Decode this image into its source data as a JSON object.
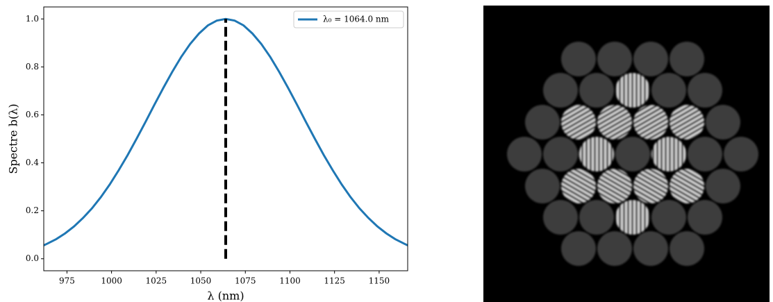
{
  "chart_data": {
    "type": "line",
    "xlabel": "λ (nm)",
    "ylabel": "Spectre b(λ)",
    "x": [
      962,
      964,
      969,
      974,
      979,
      984,
      989,
      994,
      999,
      1004,
      1009,
      1014,
      1019,
      1024,
      1029,
      1034,
      1039,
      1044,
      1049,
      1054,
      1059,
      1064,
      1069,
      1074,
      1079,
      1084,
      1089,
      1094,
      1099,
      1104,
      1109,
      1114,
      1119,
      1124,
      1129,
      1134,
      1139,
      1144,
      1149,
      1154,
      1159,
      1164,
      1166
    ],
    "series": [
      {
        "name": "λ₀ = 1064.0 nm",
        "color": "#1f77b4",
        "values": [
          0.056,
          0.063,
          0.082,
          0.106,
          0.135,
          0.17,
          0.21,
          0.257,
          0.31,
          0.369,
          0.432,
          0.5,
          0.57,
          0.642,
          0.712,
          0.779,
          0.841,
          0.895,
          0.939,
          0.973,
          0.993,
          1.0,
          0.993,
          0.973,
          0.939,
          0.895,
          0.841,
          0.779,
          0.712,
          0.642,
          0.57,
          0.5,
          0.432,
          0.369,
          0.31,
          0.257,
          0.21,
          0.17,
          0.135,
          0.106,
          0.082,
          0.063,
          0.056
        ]
      }
    ],
    "vline": {
      "x": 1064,
      "y": [
        0,
        1
      ],
      "color": "#000000"
    },
    "xlim": [
      962,
      1166
    ],
    "ylim": [
      -0.05,
      1.05
    ],
    "xticks": [
      975,
      1000,
      1025,
      1050,
      1075,
      1100,
      1125,
      1150
    ],
    "yticks": [
      {
        "value": 0,
        "label": "0.0"
      },
      0.2,
      0.4,
      0.6,
      0.8,
      {
        "value": 1,
        "label": "1.0"
      }
    ],
    "legend": "upper right"
  }
}
